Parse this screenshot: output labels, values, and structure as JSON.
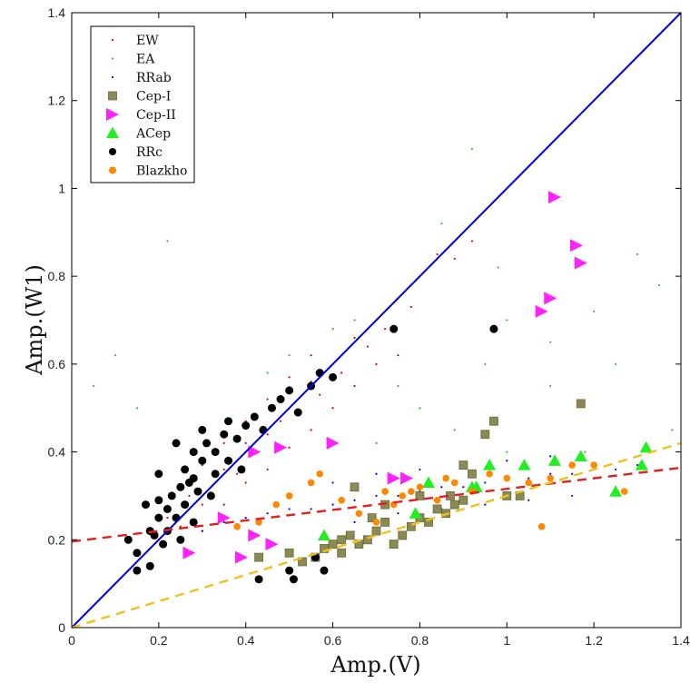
{
  "chart_data": {
    "type": "scatter",
    "title": "",
    "xlabel": "Amp.(V)",
    "ylabel": "Amp.(W1)",
    "xlim": [
      0,
      1.4
    ],
    "ylim": [
      0,
      1.4
    ],
    "xticks": [
      "0",
      "0.2",
      "0.4",
      "0.6",
      "0.8",
      "1",
      "1.2",
      "1.4"
    ],
    "yticks": [
      "0",
      "0.2",
      "0.4",
      "0.6",
      "0.8",
      "1",
      "1.2",
      "1.4"
    ],
    "legend_position": "top-left",
    "grid": false,
    "series": [
      {
        "name": "EW",
        "marker": "dot",
        "color": "#e00000",
        "points": [
          [
            0.15,
            0.17
          ],
          [
            0.18,
            0.22
          ],
          [
            0.2,
            0.2
          ],
          [
            0.22,
            0.25
          ],
          [
            0.25,
            0.23
          ],
          [
            0.27,
            0.3
          ],
          [
            0.3,
            0.28
          ],
          [
            0.33,
            0.33
          ],
          [
            0.35,
            0.36
          ],
          [
            0.38,
            0.35
          ],
          [
            0.4,
            0.42
          ],
          [
            0.42,
            0.4
          ],
          [
            0.45,
            0.44
          ],
          [
            0.48,
            0.47
          ],
          [
            0.5,
            0.5
          ],
          [
            0.52,
            0.49
          ],
          [
            0.55,
            0.56
          ],
          [
            0.57,
            0.53
          ],
          [
            0.6,
            0.6
          ],
          [
            0.62,
            0.58
          ],
          [
            0.65,
            0.66
          ],
          [
            0.68,
            0.64
          ],
          [
            0.7,
            0.7
          ],
          [
            0.72,
            0.68
          ],
          [
            0.75,
            0.75
          ],
          [
            0.78,
            0.73
          ],
          [
            0.8,
            0.8
          ],
          [
            0.84,
            0.85
          ],
          [
            0.88,
            0.84
          ],
          [
            0.92,
            0.88
          ],
          [
            0.3,
            0.22
          ],
          [
            0.35,
            0.28
          ],
          [
            0.4,
            0.33
          ],
          [
            0.45,
            0.36
          ],
          [
            0.5,
            0.41
          ],
          [
            0.55,
            0.45
          ],
          [
            0.6,
            0.5
          ],
          [
            0.65,
            0.55
          ],
          [
            0.7,
            0.6
          ],
          [
            0.75,
            0.62
          ],
          [
            0.25,
            0.32
          ],
          [
            0.3,
            0.37
          ],
          [
            0.35,
            0.42
          ],
          [
            0.4,
            0.47
          ],
          [
            0.45,
            0.52
          ],
          [
            0.5,
            0.57
          ],
          [
            0.55,
            0.62
          ],
          [
            0.6,
            0.68
          ]
        ]
      },
      {
        "name": "EA",
        "marker": "dot",
        "color": "#22cc22",
        "points": [
          [
            0.22,
            0.88
          ],
          [
            0.05,
            0.55
          ],
          [
            0.1,
            0.62
          ],
          [
            0.6,
            0.68
          ],
          [
            0.8,
            0.5
          ],
          [
            0.95,
            0.6
          ],
          [
            1.0,
            0.7
          ],
          [
            1.1,
            0.65
          ],
          [
            1.2,
            0.72
          ],
          [
            1.3,
            0.85
          ],
          [
            1.35,
            0.78
          ],
          [
            0.92,
            1.09
          ],
          [
            0.85,
            0.92
          ],
          [
            0.65,
            0.7
          ],
          [
            0.75,
            0.55
          ],
          [
            0.88,
            0.45
          ],
          [
            1.0,
            0.4
          ],
          [
            1.1,
            0.55
          ],
          [
            1.25,
            0.6
          ],
          [
            0.5,
            0.62
          ],
          [
            0.45,
            0.58
          ],
          [
            0.15,
            0.5
          ],
          [
            1.38,
            0.45
          ],
          [
            0.7,
            0.42
          ],
          [
            0.98,
            0.82
          ],
          [
            1.18,
            0.4
          ]
        ]
      },
      {
        "name": "RRab",
        "marker": "dot",
        "color": "#0000dd",
        "points": [
          [
            0.3,
            0.22
          ],
          [
            0.35,
            0.24
          ],
          [
            0.4,
            0.25
          ],
          [
            0.45,
            0.26
          ],
          [
            0.5,
            0.27
          ],
          [
            0.55,
            0.27
          ],
          [
            0.6,
            0.28
          ],
          [
            0.65,
            0.29
          ],
          [
            0.7,
            0.3
          ],
          [
            0.75,
            0.3
          ],
          [
            0.8,
            0.31
          ],
          [
            0.85,
            0.32
          ],
          [
            0.9,
            0.32
          ],
          [
            0.95,
            0.33
          ],
          [
            1.0,
            0.34
          ],
          [
            1.05,
            0.34
          ],
          [
            1.1,
            0.35
          ],
          [
            1.15,
            0.35
          ],
          [
            1.2,
            0.36
          ],
          [
            1.25,
            0.36
          ],
          [
            1.3,
            0.37
          ],
          [
            0.6,
            0.33
          ],
          [
            0.7,
            0.35
          ],
          [
            0.8,
            0.36
          ],
          [
            0.9,
            0.37
          ],
          [
            1.0,
            0.38
          ],
          [
            1.1,
            0.39
          ],
          [
            0.65,
            0.24
          ],
          [
            0.75,
            0.26
          ],
          [
            0.85,
            0.27
          ],
          [
            0.95,
            0.28
          ],
          [
            1.05,
            0.29
          ],
          [
            1.15,
            0.3
          ]
        ]
      },
      {
        "name": "Cep-I",
        "marker": "square",
        "color": "#8a8a55",
        "points": [
          [
            0.43,
            0.16
          ],
          [
            0.5,
            0.17
          ],
          [
            0.53,
            0.15
          ],
          [
            0.56,
            0.16
          ],
          [
            0.58,
            0.18
          ],
          [
            0.6,
            0.19
          ],
          [
            0.62,
            0.2
          ],
          [
            0.64,
            0.21
          ],
          [
            0.66,
            0.19
          ],
          [
            0.68,
            0.2
          ],
          [
            0.7,
            0.22
          ],
          [
            0.72,
            0.24
          ],
          [
            0.74,
            0.19
          ],
          [
            0.76,
            0.21
          ],
          [
            0.78,
            0.23
          ],
          [
            0.8,
            0.25
          ],
          [
            0.82,
            0.24
          ],
          [
            0.84,
            0.27
          ],
          [
            0.86,
            0.26
          ],
          [
            0.88,
            0.28
          ],
          [
            0.9,
            0.29
          ],
          [
            0.65,
            0.32
          ],
          [
            0.72,
            0.28
          ],
          [
            0.8,
            0.3
          ],
          [
            0.87,
            0.3
          ],
          [
            0.9,
            0.37
          ],
          [
            0.95,
            0.44
          ],
          [
            0.97,
            0.47
          ],
          [
            0.92,
            0.35
          ],
          [
            1.0,
            0.3
          ],
          [
            1.17,
            0.51
          ],
          [
            1.03,
            0.3
          ],
          [
            0.62,
            0.17
          ],
          [
            0.69,
            0.25
          ]
        ]
      },
      {
        "name": "Cep-II",
        "marker": "triangle-right",
        "color": "#ff22ff",
        "points": [
          [
            0.27,
            0.17
          ],
          [
            0.39,
            0.16
          ],
          [
            0.42,
            0.21
          ],
          [
            0.46,
            0.19
          ],
          [
            0.35,
            0.25
          ],
          [
            0.42,
            0.4
          ],
          [
            0.48,
            0.41
          ],
          [
            0.6,
            0.42
          ],
          [
            0.74,
            0.34
          ],
          [
            0.77,
            0.34
          ],
          [
            1.08,
            0.72
          ],
          [
            1.1,
            0.75
          ],
          [
            1.11,
            0.98
          ],
          [
            1.16,
            0.87
          ],
          [
            1.17,
            0.83
          ]
        ]
      },
      {
        "name": "ACep",
        "marker": "triangle-up",
        "color": "#22ee22",
        "points": [
          [
            0.58,
            0.21
          ],
          [
            0.79,
            0.26
          ],
          [
            0.82,
            0.33
          ],
          [
            0.92,
            0.32
          ],
          [
            0.93,
            0.32
          ],
          [
            0.96,
            0.37
          ],
          [
            1.04,
            0.37
          ],
          [
            1.11,
            0.38
          ],
          [
            1.17,
            0.39
          ],
          [
            1.25,
            0.31
          ],
          [
            1.31,
            0.37
          ],
          [
            1.32,
            0.41
          ]
        ]
      },
      {
        "name": "RRc",
        "marker": "circle",
        "color": "#000000",
        "points": [
          [
            0.13,
            0.2
          ],
          [
            0.15,
            0.17
          ],
          [
            0.15,
            0.13
          ],
          [
            0.18,
            0.14
          ],
          [
            0.18,
            0.22
          ],
          [
            0.2,
            0.25
          ],
          [
            0.2,
            0.29
          ],
          [
            0.22,
            0.22
          ],
          [
            0.23,
            0.3
          ],
          [
            0.24,
            0.25
          ],
          [
            0.25,
            0.32
          ],
          [
            0.26,
            0.36
          ],
          [
            0.27,
            0.33
          ],
          [
            0.28,
            0.4
          ],
          [
            0.3,
            0.38
          ],
          [
            0.3,
            0.45
          ],
          [
            0.31,
            0.42
          ],
          [
            0.33,
            0.4
          ],
          [
            0.35,
            0.44
          ],
          [
            0.36,
            0.47
          ],
          [
            0.38,
            0.43
          ],
          [
            0.4,
            0.46
          ],
          [
            0.42,
            0.48
          ],
          [
            0.44,
            0.45
          ],
          [
            0.46,
            0.5
          ],
          [
            0.48,
            0.52
          ],
          [
            0.5,
            0.54
          ],
          [
            0.52,
            0.49
          ],
          [
            0.55,
            0.55
          ],
          [
            0.57,
            0.58
          ],
          [
            0.6,
            0.57
          ],
          [
            0.74,
            0.68
          ],
          [
            0.97,
            0.68
          ],
          [
            0.43,
            0.11
          ],
          [
            0.5,
            0.13
          ],
          [
            0.51,
            0.11
          ],
          [
            0.56,
            0.16
          ],
          [
            0.58,
            0.13
          ],
          [
            0.22,
            0.27
          ],
          [
            0.25,
            0.2
          ],
          [
            0.28,
            0.24
          ],
          [
            0.33,
            0.35
          ],
          [
            0.2,
            0.35
          ],
          [
            0.24,
            0.42
          ],
          [
            0.28,
            0.34
          ],
          [
            0.32,
            0.3
          ],
          [
            0.36,
            0.38
          ],
          [
            0.39,
            0.36
          ],
          [
            0.17,
            0.28
          ],
          [
            0.19,
            0.21
          ],
          [
            0.21,
            0.19
          ],
          [
            0.26,
            0.28
          ],
          [
            0.29,
            0.31
          ]
        ]
      },
      {
        "name": "Blazkho",
        "marker": "circle",
        "color": "#ff8800",
        "points": [
          [
            0.38,
            0.23
          ],
          [
            0.43,
            0.24
          ],
          [
            0.47,
            0.28
          ],
          [
            0.5,
            0.3
          ],
          [
            0.55,
            0.33
          ],
          [
            0.57,
            0.35
          ],
          [
            0.62,
            0.29
          ],
          [
            0.66,
            0.26
          ],
          [
            0.7,
            0.24
          ],
          [
            0.72,
            0.31
          ],
          [
            0.76,
            0.3
          ],
          [
            0.8,
            0.32
          ],
          [
            0.84,
            0.29
          ],
          [
            0.88,
            0.33
          ],
          [
            0.92,
            0.31
          ],
          [
            0.96,
            0.35
          ],
          [
            1.0,
            0.34
          ],
          [
            1.05,
            0.33
          ],
          [
            1.1,
            0.34
          ],
          [
            1.15,
            0.37
          ],
          [
            1.2,
            0.37
          ],
          [
            1.27,
            0.31
          ],
          [
            1.08,
            0.23
          ],
          [
            0.74,
            0.28
          ],
          [
            0.78,
            0.31
          ],
          [
            0.86,
            0.34
          ]
        ]
      }
    ],
    "lines": [
      {
        "kind": "one-to-one",
        "style": "solid",
        "color": "#0000dd",
        "from": [
          0,
          0
        ],
        "to": [
          1.4,
          1.4
        ]
      },
      {
        "kind": "fit",
        "style": "dashed",
        "color": "#e02020",
        "from": [
          0,
          0.196
        ],
        "to": [
          1.4,
          0.364
        ]
      },
      {
        "kind": "fit",
        "style": "dashed",
        "color": "#f0c020",
        "from": [
          0,
          0.0
        ],
        "to": [
          1.4,
          0.42
        ]
      }
    ]
  }
}
